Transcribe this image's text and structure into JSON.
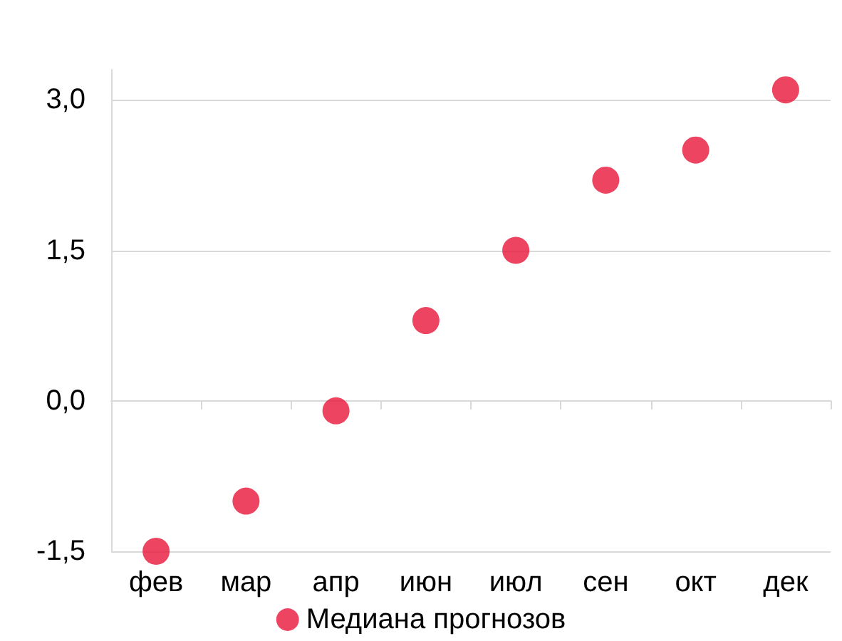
{
  "chart_data": {
    "type": "scatter",
    "categories": [
      "фев",
      "мар",
      "апр",
      "июн",
      "июл",
      "сен",
      "окт",
      "дек"
    ],
    "series": [
      {
        "name": "Медиана прогнозов",
        "color": "#e8173a",
        "values": [
          -1.5,
          -1.0,
          -0.1,
          0.8,
          1.5,
          2.2,
          2.5,
          3.1
        ]
      }
    ],
    "ylim": [
      -1.5,
      3.3
    ],
    "yticks": [
      {
        "value": -1.5,
        "label": "-1,5"
      },
      {
        "value": 0,
        "label": "0,0"
      },
      {
        "value": 1.5,
        "label": "1,5"
      },
      {
        "value": 3,
        "label": "3,0"
      }
    ],
    "grid": "y",
    "legend": "bottom",
    "marker": "circle"
  }
}
